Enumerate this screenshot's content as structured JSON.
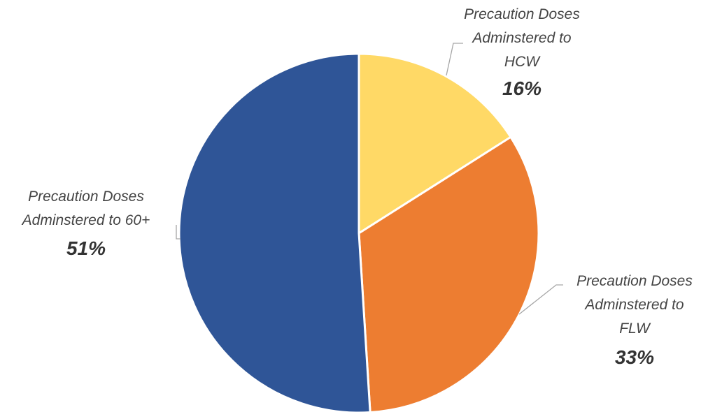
{
  "chart_data": {
    "type": "pie",
    "title": "",
    "slices": [
      {
        "label_lines": [
          "Precaution Doses",
          "Adminstered to",
          "HCW"
        ],
        "value": 16,
        "value_label": "16%",
        "color": "#FFD966"
      },
      {
        "label_lines": [
          "Precaution Doses",
          "Adminstered to",
          "FLW"
        ],
        "value": 33,
        "value_label": "33%",
        "color": "#ED7D31"
      },
      {
        "label_lines": [
          "Precaution Doses",
          "Adminstered to 60+"
        ],
        "value": 51,
        "value_label": "51%",
        "color": "#2F5597"
      }
    ],
    "start": "12 o'clock",
    "direction": "clockwise",
    "legend": "none",
    "data_labels": "outside with leader lines"
  }
}
